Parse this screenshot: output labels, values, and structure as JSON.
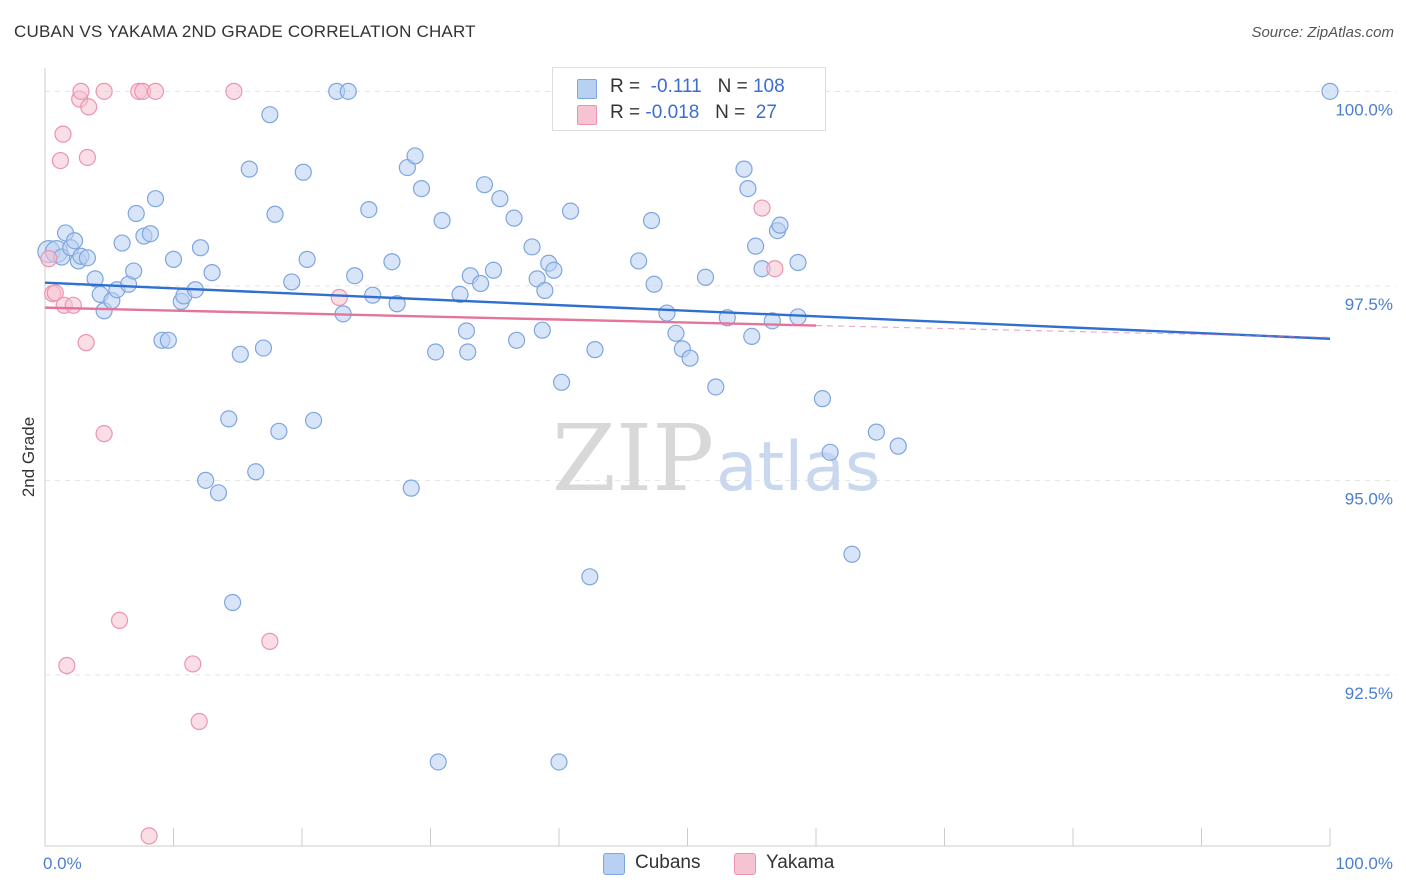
{
  "header": {
    "title": "CUBAN VS YAKAMA 2ND GRADE CORRELATION CHART",
    "source": "Source: ZipAtlas.com"
  },
  "legend_top": {
    "rows": [
      {
        "r_label": "R =",
        "r_value": "-0.111",
        "n_label": "N =",
        "n_value": "108"
      },
      {
        "r_label": "R =",
        "r_value": "-0.018",
        "n_label": "N =",
        "n_value": " 27"
      }
    ]
  },
  "legend_bottom": {
    "items": [
      "Cubans",
      "Yakama"
    ]
  },
  "watermark": {
    "zip": "ZIP",
    "atlas": "atlas"
  },
  "colors": {
    "cubans_fill": "#b8d0f2",
    "cubans_stroke": "#7ea6de",
    "cubans_line": "#2f6fd0",
    "yakama_fill": "#f6c3d2",
    "yakama_stroke": "#ec93b0",
    "yakama_line": "#e5749a",
    "tick_text": "#4a7fd0",
    "grid": "#e3e3e3"
  },
  "chart_data": {
    "type": "scatter",
    "title": "CUBAN VS YAKAMA 2ND GRADE CORRELATION CHART",
    "xlabel": "",
    "ylabel": "2nd Grade",
    "xlim": [
      0,
      100
    ],
    "ylim": [
      90.3,
      100.3
    ],
    "x_tick_labels": [
      "0.0%",
      "100.0%"
    ],
    "y_ticks": [
      92.5,
      95.0,
      97.5,
      100.0
    ],
    "y_tick_labels": [
      "92.5%",
      "95.0%",
      "97.5%",
      "100.0%"
    ],
    "grid": true,
    "legend_placement": "bottom",
    "series": [
      {
        "name": "Cubans",
        "r": -0.111,
        "n": 108,
        "trend": {
          "x": [
            0,
            100
          ],
          "y": [
            97.54,
            96.82
          ]
        },
        "points": [
          [
            0.3,
            97.94
          ],
          [
            0.9,
            97.94
          ],
          [
            1.3,
            97.87
          ],
          [
            1.6,
            98.18
          ],
          [
            2.0,
            97.99
          ],
          [
            2.3,
            98.08
          ],
          [
            2.6,
            97.82
          ],
          [
            2.8,
            97.88
          ],
          [
            3.3,
            97.86
          ],
          [
            3.9,
            97.59
          ],
          [
            4.3,
            97.39
          ],
          [
            4.6,
            97.18
          ],
          [
            5.2,
            97.31
          ],
          [
            5.6,
            97.45
          ],
          [
            6.0,
            98.05
          ],
          [
            6.5,
            97.52
          ],
          [
            6.9,
            97.69
          ],
          [
            7.1,
            98.43
          ],
          [
            7.7,
            98.14
          ],
          [
            8.2,
            98.17
          ],
          [
            8.6,
            98.62
          ],
          [
            9.1,
            96.8
          ],
          [
            9.6,
            96.8
          ],
          [
            10.0,
            97.84
          ],
          [
            10.6,
            97.3
          ],
          [
            10.8,
            97.37
          ],
          [
            11.7,
            97.45
          ],
          [
            12.1,
            97.99
          ],
          [
            12.5,
            95.0
          ],
          [
            13.0,
            97.67
          ],
          [
            13.5,
            94.84
          ],
          [
            14.3,
            95.79
          ],
          [
            14.6,
            93.43
          ],
          [
            15.2,
            96.62
          ],
          [
            15.9,
            99.0
          ],
          [
            16.4,
            95.11
          ],
          [
            17.0,
            96.7
          ],
          [
            17.5,
            99.7
          ],
          [
            17.9,
            98.42
          ],
          [
            18.2,
            95.63
          ],
          [
            19.2,
            97.55
          ],
          [
            20.1,
            98.96
          ],
          [
            20.4,
            97.84
          ],
          [
            20.9,
            95.77
          ],
          [
            22.7,
            100.0
          ],
          [
            23.6,
            100.0
          ],
          [
            23.2,
            97.14
          ],
          [
            24.1,
            97.63
          ],
          [
            25.2,
            98.48
          ],
          [
            25.5,
            97.38
          ],
          [
            27.0,
            97.81
          ],
          [
            27.4,
            97.27
          ],
          [
            28.2,
            99.02
          ],
          [
            28.5,
            94.9
          ],
          [
            28.8,
            99.17
          ],
          [
            29.3,
            98.75
          ],
          [
            30.4,
            96.65
          ],
          [
            30.6,
            91.38
          ],
          [
            30.9,
            98.34
          ],
          [
            32.3,
            97.39
          ],
          [
            32.8,
            96.92
          ],
          [
            32.9,
            96.65
          ],
          [
            33.1,
            97.63
          ],
          [
            33.9,
            97.53
          ],
          [
            34.2,
            98.8
          ],
          [
            34.9,
            97.7
          ],
          [
            35.4,
            98.62
          ],
          [
            36.5,
            98.37
          ],
          [
            36.7,
            96.8
          ],
          [
            37.9,
            98.0
          ],
          [
            38.3,
            97.59
          ],
          [
            38.7,
            96.93
          ],
          [
            38.9,
            97.44
          ],
          [
            39.2,
            97.79
          ],
          [
            39.6,
            97.7
          ],
          [
            40.0,
            91.38
          ],
          [
            40.2,
            96.26
          ],
          [
            40.9,
            98.46
          ],
          [
            42.4,
            93.76
          ],
          [
            42.8,
            96.68
          ],
          [
            46.2,
            97.82
          ],
          [
            47.2,
            98.34
          ],
          [
            47.4,
            97.52
          ],
          [
            48.4,
            97.15
          ],
          [
            49.1,
            96.89
          ],
          [
            49.6,
            96.69
          ],
          [
            50.2,
            96.57
          ],
          [
            51.4,
            97.61
          ],
          [
            52.2,
            96.2
          ],
          [
            53.1,
            97.09
          ],
          [
            54.4,
            99.0
          ],
          [
            54.7,
            98.75
          ],
          [
            55.0,
            96.85
          ],
          [
            55.3,
            98.01
          ],
          [
            55.8,
            97.72
          ],
          [
            56.6,
            97.05
          ],
          [
            57.0,
            98.21
          ],
          [
            57.2,
            98.28
          ],
          [
            58.6,
            97.8
          ],
          [
            58.6,
            97.1
          ],
          [
            60.5,
            96.05
          ],
          [
            61.1,
            95.36
          ],
          [
            62.8,
            94.05
          ],
          [
            64.7,
            95.62
          ],
          [
            66.4,
            95.44
          ],
          [
            100,
            100.0
          ]
        ]
      },
      {
        "name": "Yakama",
        "r": -0.018,
        "n": 27,
        "trend": {
          "x": [
            0,
            60
          ],
          "y": [
            97.22,
            96.99
          ]
        },
        "points": [
          [
            0.3,
            97.85
          ],
          [
            0.6,
            97.4
          ],
          [
            0.8,
            97.41
          ],
          [
            1.2,
            99.11
          ],
          [
            1.4,
            99.45
          ],
          [
            1.5,
            97.25
          ],
          [
            1.7,
            92.62
          ],
          [
            2.2,
            97.25
          ],
          [
            2.7,
            99.9
          ],
          [
            2.8,
            100.0
          ],
          [
            3.2,
            96.77
          ],
          [
            3.3,
            99.15
          ],
          [
            3.4,
            99.8
          ],
          [
            4.6,
            100.0
          ],
          [
            4.6,
            95.6
          ],
          [
            5.8,
            93.2
          ],
          [
            7.3,
            100.0
          ],
          [
            7.6,
            100.0
          ],
          [
            8.1,
            90.43
          ],
          [
            8.6,
            100.0
          ],
          [
            11.5,
            92.64
          ],
          [
            12.0,
            91.9
          ],
          [
            14.7,
            100.0
          ],
          [
            17.5,
            92.93
          ],
          [
            22.9,
            97.35
          ],
          [
            55.8,
            98.5
          ],
          [
            56.8,
            97.72
          ]
        ]
      }
    ]
  }
}
